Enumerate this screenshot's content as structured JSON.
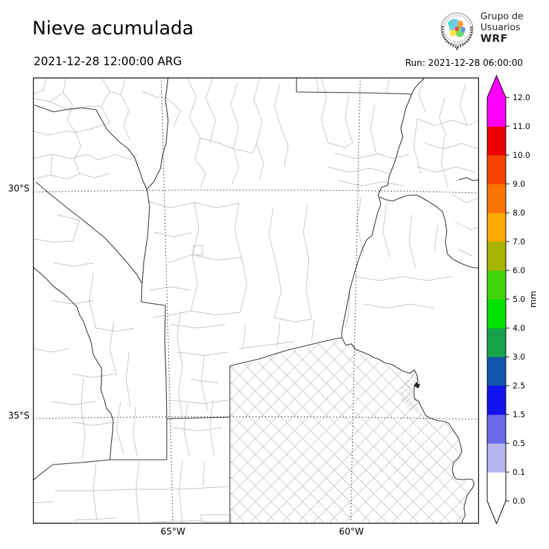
{
  "header": {
    "title": "Nieve acumulada",
    "datetime": "2021-12-28 12:00:00 ARG",
    "run": "Run: 2021-12-28 06:00:00"
  },
  "logo": {
    "line1": "Grupo de",
    "line2": "Usuarios",
    "line3": "WRF"
  },
  "map_axes": {
    "lat": [
      {
        "label": "30°S"
      },
      {
        "label": "35°S"
      }
    ],
    "lon": [
      {
        "label": "65°W"
      },
      {
        "label": "60°W"
      }
    ]
  },
  "colorbar": {
    "unit": "mm",
    "tick_labels": [
      "0.0",
      "0.1",
      "0.5",
      "1.5",
      "2.5",
      "3.0",
      "4.0",
      "5.0",
      "6.0",
      "7.0",
      "8.0",
      "9.0",
      "10.0",
      "11.0",
      "12.0"
    ],
    "segment_colors": [
      "#ffffff",
      "#b5b5f0",
      "#6a6ae8",
      "#1212ee",
      "#1356ad",
      "#18a24b",
      "#00e400",
      "#41d408",
      "#a9b400",
      "#fba903",
      "#fb7305",
      "#f64400",
      "#ee0000",
      "#ff00ff"
    ],
    "over_color": "#ff00ff",
    "under_color": "#ffffff",
    "outline_color": "#000000"
  }
}
